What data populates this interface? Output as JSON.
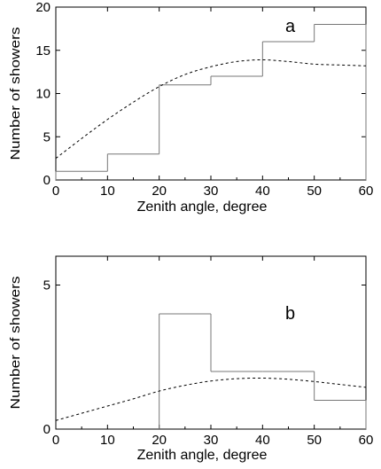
{
  "chart_data": [
    {
      "type": "histogram",
      "panel_label": "a",
      "xlabel": "Zenith angle, degree",
      "ylabel": "Number of showers",
      "xlim": [
        0,
        60
      ],
      "ylim": [
        0,
        20
      ],
      "x_ticks": [
        0,
        10,
        20,
        30,
        40,
        50,
        60
      ],
      "y_ticks": [
        0,
        5,
        10,
        15,
        20
      ],
      "bins": [
        {
          "x0": 0,
          "x1": 10,
          "value": 1
        },
        {
          "x0": 10,
          "x1": 20,
          "value": 3
        },
        {
          "x0": 20,
          "x1": 30,
          "value": 11
        },
        {
          "x0": 30,
          "x1": 40,
          "value": 12
        },
        {
          "x0": 40,
          "x1": 50,
          "value": 16
        },
        {
          "x0": 50,
          "x1": 60,
          "value": 18
        }
      ],
      "fit_curve": {
        "style": "dashed",
        "x": [
          0,
          5,
          10,
          15,
          20,
          25,
          30,
          35,
          40,
          45,
          50,
          55,
          60
        ],
        "y": [
          2.5,
          4.8,
          7.0,
          9.0,
          10.8,
          12.2,
          13.1,
          13.7,
          13.9,
          13.7,
          13.4,
          13.3,
          13.2
        ]
      }
    },
    {
      "type": "histogram",
      "panel_label": "b",
      "xlabel": "Zenith angle, degree",
      "ylabel": "Number of showers",
      "xlim": [
        0,
        60
      ],
      "ylim": [
        0,
        6
      ],
      "x_ticks": [
        0,
        10,
        20,
        30,
        40,
        50,
        60
      ],
      "y_ticks": [
        0,
        5
      ],
      "bins": [
        {
          "x0": 20,
          "x1": 30,
          "value": 4
        },
        {
          "x0": 30,
          "x1": 40,
          "value": 2
        },
        {
          "x0": 40,
          "x1": 50,
          "value": 2
        },
        {
          "x0": 50,
          "x1": 60,
          "value": 1
        }
      ],
      "fit_curve": {
        "style": "dashed",
        "x": [
          0,
          5,
          10,
          15,
          20,
          25,
          30,
          35,
          40,
          45,
          50,
          55,
          60
        ],
        "y": [
          0.3,
          0.55,
          0.8,
          1.05,
          1.32,
          1.52,
          1.67,
          1.75,
          1.77,
          1.73,
          1.65,
          1.55,
          1.45
        ]
      }
    }
  ]
}
